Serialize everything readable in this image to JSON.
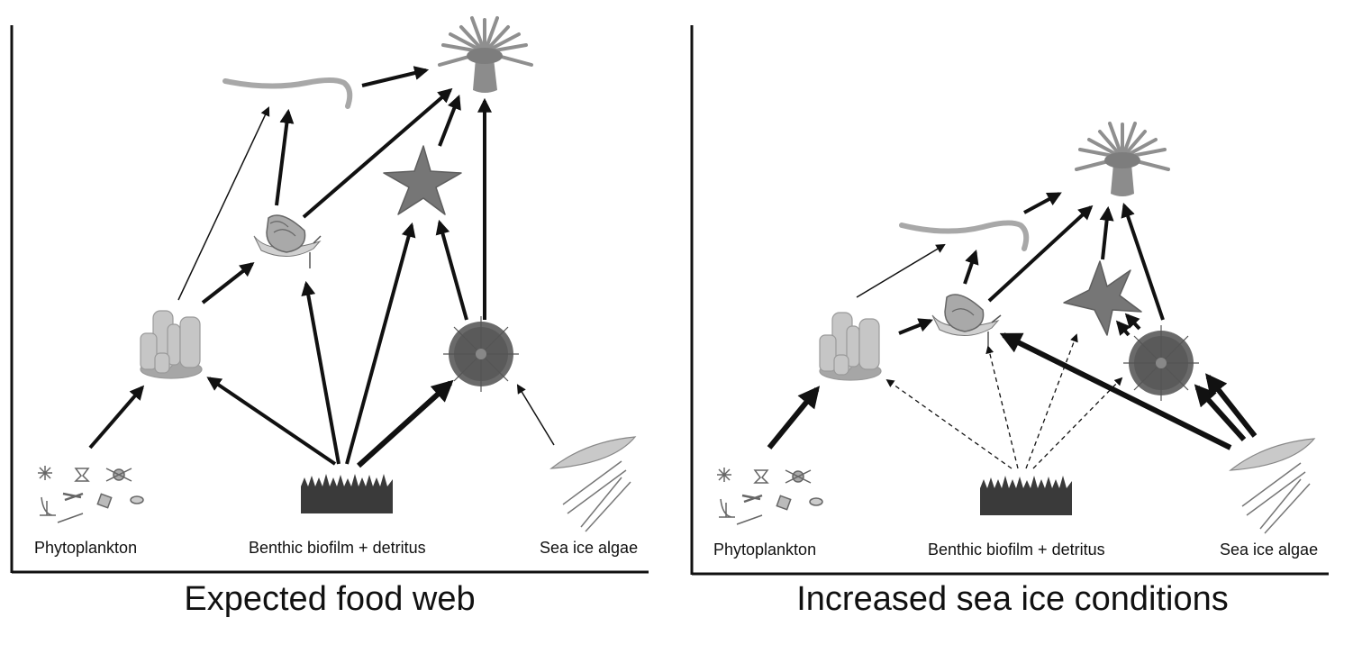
{
  "panels": [
    {
      "caption": "Expected food web",
      "labels": {
        "phytoplankton": "Phytoplankton",
        "benthic": "Benthic biofilm + detritus",
        "sea_ice": "Sea ice algae"
      }
    },
    {
      "caption": "Increased sea ice conditions",
      "labels": {
        "phytoplankton": "Phytoplankton",
        "benthic": "Benthic biofilm + detritus",
        "sea_ice": "Sea ice algae"
      }
    }
  ],
  "colors": {
    "ink": "#111111",
    "organism": "#9a9a9a",
    "organism_dark": "#6f6f6f",
    "biofilm": "#3a3a3a"
  }
}
